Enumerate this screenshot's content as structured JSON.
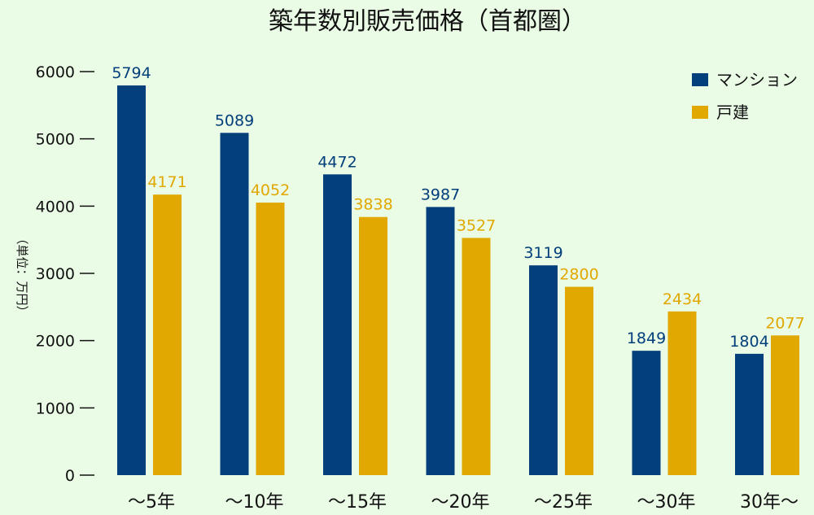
{
  "chart_data": {
    "type": "bar",
    "title": "築年数別販売価格（首都圏）",
    "ylabel": "（単位：万円）",
    "ylim": [
      0,
      6000
    ],
    "yticks": [
      0,
      1000,
      2000,
      3000,
      4000,
      5000,
      6000
    ],
    "categories": [
      "〜5年",
      "〜10年",
      "〜15年",
      "〜20年",
      "〜25年",
      "〜30年",
      "30年〜"
    ],
    "series": [
      {
        "name": "マンション",
        "color": "#033f7a",
        "values": [
          5794,
          5089,
          4472,
          3987,
          3119,
          1849,
          1804
        ]
      },
      {
        "name": "戸建",
        "color": "#e0a800",
        "values": [
          4171,
          4052,
          3838,
          3527,
          2800,
          2434,
          2077
        ]
      }
    ],
    "legend_position": "top-right",
    "grid": false,
    "background": "#eafbe6"
  }
}
